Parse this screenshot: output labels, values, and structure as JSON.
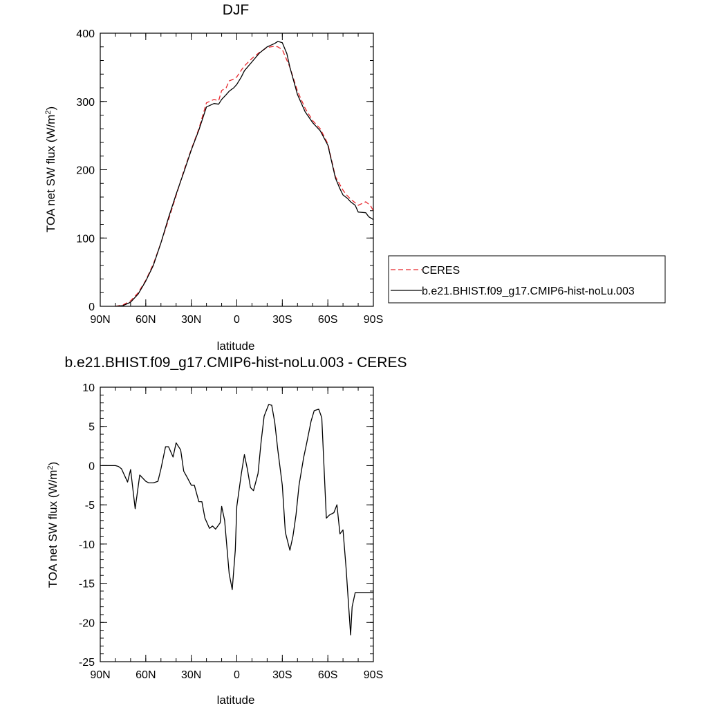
{
  "chart_data": [
    {
      "type": "line",
      "title": "DJF",
      "xlabel": "latitude",
      "ylabel": "TOA net SW flux (W/m",
      "ylabel_sup": "2",
      "ylabel_close": ")",
      "xlim": [
        90,
        -90
      ],
      "ylim": [
        0,
        400
      ],
      "xticks": [
        {
          "value": 90,
          "label": "90N"
        },
        {
          "value": 60,
          "label": "60N"
        },
        {
          "value": 30,
          "label": "30N"
        },
        {
          "value": 0,
          "label": "0"
        },
        {
          "value": -30,
          "label": "30S"
        },
        {
          "value": -60,
          "label": "60S"
        },
        {
          "value": -90,
          "label": "90S"
        }
      ],
      "yticks": [
        0,
        100,
        200,
        300,
        400
      ],
      "legend": "right",
      "series": [
        {
          "name": "CERES",
          "color": "#e8262b",
          "dash": true,
          "x": [
            80,
            75,
            70,
            65,
            60,
            55,
            50,
            45,
            40,
            35,
            30,
            25,
            20,
            15,
            12,
            10,
            7,
            5,
            2,
            0,
            -3,
            -5,
            -10,
            -15,
            -20,
            -25,
            -27,
            -30,
            -35,
            -40,
            -45,
            -50,
            -55,
            -60,
            -65,
            -70,
            -72,
            -75,
            -80,
            -85,
            -88,
            -90
          ],
          "y": [
            0,
            2,
            8,
            20,
            38,
            62,
            93,
            127,
            162,
            198,
            230,
            260,
            298,
            303,
            301,
            316,
            320,
            330,
            333,
            336,
            346,
            352,
            363,
            372,
            379,
            381,
            380,
            376,
            350,
            315,
            290,
            272,
            260,
            238,
            190,
            170,
            164,
            157,
            148,
            153,
            148,
            140
          ]
        },
        {
          "name": "b.e21.BHIST.f09_g17.CMIP6-hist-noLu.003",
          "color": "#000000",
          "dash": false,
          "x": [
            80,
            75,
            70,
            65,
            60,
            55,
            50,
            45,
            40,
            35,
            30,
            25,
            20,
            15,
            12,
            10,
            7,
            5,
            2,
            0,
            -3,
            -5,
            -10,
            -15,
            -20,
            -25,
            -27,
            -30,
            -33,
            -35,
            -40,
            -45,
            -50,
            -55,
            -60,
            -65,
            -68,
            -70,
            -73,
            -75,
            -78,
            -80,
            -85,
            -87,
            -90
          ],
          "y": [
            0,
            1,
            6,
            18,
            37,
            60,
            93,
            130,
            164,
            196,
            229,
            258,
            292,
            297,
            296,
            303,
            310,
            315,
            320,
            325,
            336,
            345,
            358,
            371,
            380,
            385,
            388,
            386,
            370,
            350,
            310,
            285,
            269,
            257,
            236,
            188,
            172,
            163,
            158,
            153,
            148,
            138,
            137,
            131,
            127
          ]
        }
      ]
    },
    {
      "type": "line",
      "title": "b.e21.BHIST.f09_g17.CMIP6-hist-noLu.003 - CERES",
      "xlabel": "latitude",
      "ylabel": "TOA net SW flux (W/m",
      "ylabel_sup": "2",
      "ylabel_close": ")",
      "xlim": [
        90,
        -90
      ],
      "ylim": [
        -25,
        10
      ],
      "xticks": [
        {
          "value": 90,
          "label": "90N"
        },
        {
          "value": 60,
          "label": "60N"
        },
        {
          "value": 30,
          "label": "30N"
        },
        {
          "value": 0,
          "label": "0"
        },
        {
          "value": -30,
          "label": "30S"
        },
        {
          "value": -60,
          "label": "60S"
        },
        {
          "value": -90,
          "label": "90S"
        }
      ],
      "yticks": [
        10,
        5,
        0,
        -5,
        -10,
        -15,
        -20,
        -25
      ],
      "series": [
        {
          "name": "",
          "color": "#000000",
          "dash": false,
          "x": [
            89,
            80,
            78,
            76,
            72,
            70,
            67,
            64,
            60,
            58,
            55,
            52,
            50,
            47,
            45,
            42,
            40,
            37,
            35,
            33,
            30,
            28,
            25,
            23,
            21,
            18,
            16,
            14,
            11,
            10,
            8,
            5,
            3,
            1,
            0,
            -3,
            -5,
            -7,
            -9,
            -11,
            -14,
            -16,
            -18,
            -21,
            -23,
            -25,
            -27,
            -30,
            -32,
            -35,
            -37,
            -39,
            -41,
            -44,
            -46,
            -49,
            -51,
            -54,
            -56,
            -59,
            -61,
            -64,
            -66,
            -68,
            -70,
            -72,
            -75,
            -76,
            -78,
            -80,
            -82,
            -84,
            -86,
            -88,
            -89,
            -90
          ],
          "y": [
            0,
            0,
            -0.1,
            -0.4,
            -2.1,
            -0.5,
            -5.5,
            -1.2,
            -2,
            -2.2,
            -2.2,
            -2,
            -0.4,
            2.4,
            2.4,
            1.1,
            2.9,
            2,
            -0.7,
            -1.4,
            -2.5,
            -2.5,
            -4.6,
            -4.6,
            -6.7,
            -8,
            -7.7,
            -8.1,
            -7.3,
            -5.2,
            -7,
            -13.8,
            -15.8,
            -10.8,
            -5.2,
            -1,
            1.4,
            -0.5,
            -2.8,
            -3.2,
            -1,
            3,
            6.3,
            7.8,
            7.7,
            5.5,
            2,
            -2.5,
            -8.5,
            -10.8,
            -9,
            -6.3,
            -2.5,
            1,
            2.8,
            5.7,
            7,
            7.2,
            6.1,
            -6.7,
            -6.3,
            -6,
            -5,
            -8.7,
            -8.2,
            -13,
            -21.6,
            -18,
            -16.2,
            -16.2,
            -16.2,
            -16.2,
            -16.2,
            -16.2,
            -16.2,
            -16.2
          ]
        }
      ]
    }
  ]
}
